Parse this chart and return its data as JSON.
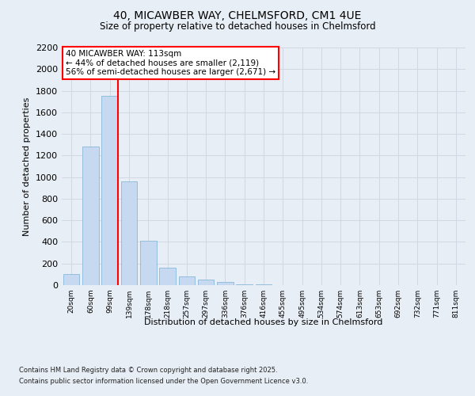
{
  "title_line1": "40, MICAWBER WAY, CHELMSFORD, CM1 4UE",
  "title_line2": "Size of property relative to detached houses in Chelmsford",
  "xlabel": "Distribution of detached houses by size in Chelmsford",
  "ylabel": "Number of detached properties",
  "categories": [
    "20sqm",
    "60sqm",
    "99sqm",
    "139sqm",
    "178sqm",
    "218sqm",
    "257sqm",
    "297sqm",
    "336sqm",
    "376sqm",
    "416sqm",
    "455sqm",
    "495sqm",
    "534sqm",
    "574sqm",
    "613sqm",
    "653sqm",
    "692sqm",
    "732sqm",
    "771sqm",
    "811sqm"
  ],
  "values": [
    100,
    1280,
    1750,
    960,
    410,
    165,
    80,
    50,
    30,
    10,
    4,
    2,
    1,
    0,
    0,
    0,
    0,
    0,
    0,
    0,
    0
  ],
  "bar_color": "#c6d9f0",
  "bar_edge_color": "#7bafd4",
  "grid_color": "#d0d8e4",
  "background_color": "#e8eef5",
  "vline_color": "red",
  "annotation_text": "40 MICAWBER WAY: 113sqm\n← 44% of detached houses are smaller (2,119)\n56% of semi-detached houses are larger (2,671) →",
  "annotation_box_color": "white",
  "annotation_box_edgecolor": "red",
  "ylim": [
    0,
    2200
  ],
  "yticks": [
    0,
    200,
    400,
    600,
    800,
    1000,
    1200,
    1400,
    1600,
    1800,
    2000,
    2200
  ],
  "footer_line1": "Contains HM Land Registry data © Crown copyright and database right 2025.",
  "footer_line2": "Contains public sector information licensed under the Open Government Licence v3.0."
}
